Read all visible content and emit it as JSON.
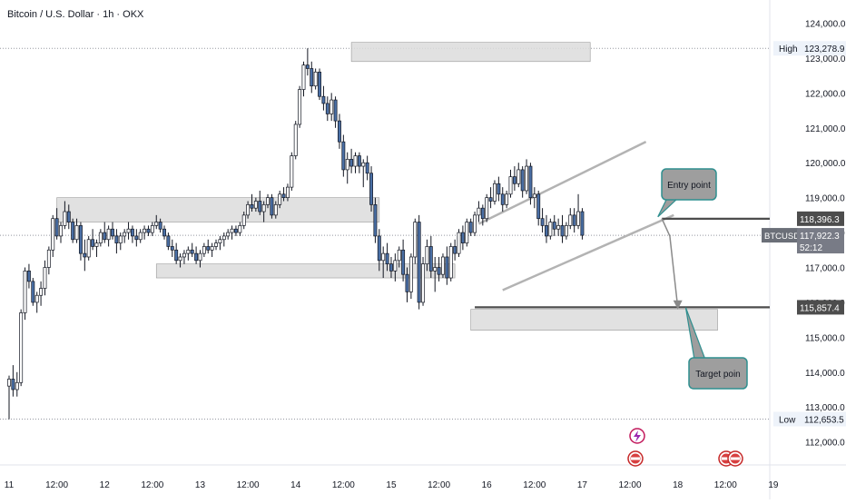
{
  "chart_data": {
    "type": "candlestick",
    "title": "Bitcoin / U.S. Dollar · 1h · OKX",
    "symbol": "BTCUSD",
    "y_ticks": [
      112000,
      113000,
      114000,
      115000,
      116000,
      117000,
      118000,
      119000,
      120000,
      121000,
      122000,
      123000,
      124000
    ],
    "y_tick_labels": [
      "112,000.0",
      "113,000.0",
      "114,000.0",
      "115,000.0",
      "116,000.0",
      "117,000.0",
      "118,000.0",
      "119,000.0",
      "120,000.0",
      "121,000.0",
      "122,000.0",
      "123,000.0",
      "124,000.0"
    ],
    "ylim": [
      111600,
      124300
    ],
    "x_ticks": [
      {
        "label": "11",
        "t": 0
      },
      {
        "label": "12:00",
        "t": 12
      },
      {
        "label": "12",
        "t": 24
      },
      {
        "label": "12:00",
        "t": 36
      },
      {
        "label": "13",
        "t": 48
      },
      {
        "label": "12:00",
        "t": 60
      },
      {
        "label": "14",
        "t": 72
      },
      {
        "label": "12:00",
        "t": 84
      },
      {
        "label": "15",
        "t": 96
      },
      {
        "label": "12:00",
        "t": 108
      },
      {
        "label": "16",
        "t": 120
      },
      {
        "label": "12:00",
        "t": 132
      },
      {
        "label": "17",
        "t": 144
      },
      {
        "label": "12:00",
        "t": 156
      },
      {
        "label": "18",
        "t": 168
      },
      {
        "label": "12:00",
        "t": 180
      },
      {
        "label": "19",
        "t": 192
      }
    ],
    "candles": [
      [
        113600,
        113900,
        112650,
        113800
      ],
      [
        113800,
        114200,
        113300,
        113500
      ],
      [
        113500,
        114000,
        113300,
        113700
      ],
      [
        113700,
        115800,
        113600,
        115700
      ],
      [
        115700,
        117000,
        115500,
        116900
      ],
      [
        116900,
        117100,
        116400,
        116600
      ],
      [
        116600,
        116700,
        115900,
        116000
      ],
      [
        116000,
        116300,
        115700,
        116200
      ],
      [
        116200,
        116600,
        115900,
        116400
      ],
      [
        116400,
        117200,
        116200,
        117000
      ],
      [
        117000,
        117600,
        116800,
        117500
      ],
      [
        117500,
        118500,
        117300,
        118400
      ],
      [
        118400,
        118700,
        117800,
        117900
      ],
      [
        117900,
        118300,
        117700,
        118200
      ],
      [
        118200,
        118900,
        118100,
        118600
      ],
      [
        118600,
        118800,
        118100,
        118300
      ],
      [
        118300,
        118400,
        117700,
        117800
      ],
      [
        117800,
        118400,
        117700,
        118200
      ],
      [
        118200,
        118300,
        117200,
        117400
      ],
      [
        117400,
        117800,
        116900,
        117300
      ],
      [
        117300,
        117900,
        117200,
        117800
      ],
      [
        117800,
        118100,
        117500,
        117600
      ],
      [
        117600,
        117800,
        117300,
        117700
      ],
      [
        117700,
        118100,
        117600,
        118000
      ],
      [
        118000,
        118300,
        117700,
        117800
      ],
      [
        117800,
        118200,
        117600,
        118100
      ],
      [
        118100,
        118300,
        117800,
        117900
      ],
      [
        117900,
        118100,
        117400,
        117700
      ],
      [
        117700,
        118000,
        117500,
        117900
      ],
      [
        117900,
        118100,
        117700,
        118000
      ],
      [
        118000,
        118300,
        117800,
        118100
      ],
      [
        118100,
        118200,
        117700,
        117900
      ],
      [
        117900,
        118100,
        117600,
        117800
      ],
      [
        117800,
        118100,
        117700,
        118000
      ],
      [
        118000,
        118200,
        117800,
        118100
      ],
      [
        118100,
        118200,
        117900,
        118000
      ],
      [
        118000,
        118300,
        117900,
        118200
      ],
      [
        118200,
        118500,
        118100,
        118300
      ],
      [
        118300,
        118400,
        118000,
        118100
      ],
      [
        118100,
        118200,
        117800,
        117900
      ],
      [
        117900,
        118000,
        117500,
        117600
      ],
      [
        117600,
        117800,
        117300,
        117500
      ],
      [
        117500,
        117700,
        117100,
        117200
      ],
      [
        117200,
        117400,
        117000,
        117300
      ],
      [
        117300,
        117500,
        117100,
        117400
      ],
      [
        117400,
        117600,
        117200,
        117500
      ],
      [
        117500,
        117700,
        117300,
        117400
      ],
      [
        117400,
        117600,
        117100,
        117200
      ],
      [
        117200,
        117500,
        117000,
        117400
      ],
      [
        117400,
        117700,
        117300,
        117600
      ],
      [
        117600,
        117800,
        117400,
        117500
      ],
      [
        117500,
        117700,
        117300,
        117600
      ],
      [
        117600,
        117800,
        117500,
        117700
      ],
      [
        117700,
        117900,
        117500,
        117800
      ],
      [
        117800,
        118000,
        117600,
        117900
      ],
      [
        117900,
        118100,
        117800,
        118000
      ],
      [
        118000,
        118200,
        117800,
        118100
      ],
      [
        118100,
        118200,
        117900,
        118000
      ],
      [
        118000,
        118300,
        117900,
        118200
      ],
      [
        118200,
        118600,
        118100,
        118500
      ],
      [
        118500,
        118900,
        118400,
        118800
      ],
      [
        118800,
        119100,
        118600,
        118700
      ],
      [
        118700,
        119000,
        118600,
        118900
      ],
      [
        118900,
        119200,
        118500,
        118600
      ],
      [
        118600,
        118900,
        118300,
        118800
      ],
      [
        118800,
        119100,
        118700,
        119000
      ],
      [
        119000,
        119100,
        118400,
        118500
      ],
      [
        118500,
        118900,
        118400,
        118800
      ],
      [
        118800,
        119200,
        118700,
        119100
      ],
      [
        119100,
        119300,
        118900,
        119000
      ],
      [
        119000,
        119400,
        118900,
        119300
      ],
      [
        119300,
        120300,
        119200,
        120200
      ],
      [
        120200,
        121200,
        120100,
        121100
      ],
      [
        121100,
        122200,
        121000,
        122100
      ],
      [
        122100,
        122900,
        121900,
        122800
      ],
      [
        122800,
        123279,
        122500,
        122700
      ],
      [
        122700,
        122900,
        122000,
        122200
      ],
      [
        122200,
        122700,
        122100,
        122600
      ],
      [
        122600,
        122700,
        121800,
        121900
      ],
      [
        121900,
        122200,
        121500,
        121700
      ],
      [
        121700,
        121900,
        121200,
        121400
      ],
      [
        121400,
        122000,
        121200,
        121800
      ],
      [
        121800,
        121900,
        121000,
        121200
      ],
      [
        121200,
        121400,
        120400,
        120600
      ],
      [
        120600,
        120800,
        119600,
        119800
      ],
      [
        119800,
        120300,
        119400,
        120100
      ],
      [
        120100,
        120400,
        119700,
        119900
      ],
      [
        119900,
        120300,
        119700,
        120200
      ],
      [
        120200,
        120300,
        119700,
        119900
      ],
      [
        119900,
        120100,
        119300,
        120000
      ],
      [
        120000,
        120200,
        119500,
        119700
      ],
      [
        119700,
        119900,
        118600,
        118800
      ],
      [
        118800,
        119000,
        117700,
        117900
      ],
      [
        117900,
        118100,
        116900,
        117200
      ],
      [
        117200,
        117600,
        116700,
        117400
      ],
      [
        117400,
        117700,
        116900,
        117100
      ],
      [
        117100,
        117300,
        116700,
        116900
      ],
      [
        116900,
        117400,
        116600,
        117200
      ],
      [
        117200,
        117600,
        117000,
        117500
      ],
      [
        117500,
        117800,
        116600,
        116800
      ],
      [
        116800,
        117000,
        116000,
        116300
      ],
      [
        116300,
        117400,
        116100,
        117300
      ],
      [
        117300,
        118400,
        117100,
        118300
      ],
      [
        118300,
        118500,
        115800,
        116000
      ],
      [
        116000,
        117300,
        115900,
        117100
      ],
      [
        117100,
        117800,
        116900,
        117600
      ],
      [
        117600,
        117900,
        116700,
        116900
      ],
      [
        116900,
        117300,
        116300,
        117000
      ],
      [
        117000,
        117300,
        116600,
        116800
      ],
      [
        116800,
        117400,
        116700,
        117300
      ],
      [
        117300,
        117600,
        116500,
        116700
      ],
      [
        116700,
        117700,
        116600,
        117600
      ],
      [
        117600,
        117800,
        117200,
        117400
      ],
      [
        117400,
        118100,
        117300,
        118000
      ],
      [
        118000,
        118200,
        117500,
        117700
      ],
      [
        117700,
        118400,
        117600,
        118300
      ],
      [
        118300,
        118400,
        117900,
        118000
      ],
      [
        118000,
        118600,
        117900,
        118500
      ],
      [
        118500,
        118900,
        118300,
        118700
      ],
      [
        118700,
        118800,
        118200,
        118400
      ],
      [
        118400,
        119100,
        118300,
        119000
      ],
      [
        119000,
        119300,
        118700,
        118900
      ],
      [
        118900,
        119500,
        118800,
        119400
      ],
      [
        119400,
        119600,
        118900,
        119100
      ],
      [
        119100,
        119300,
        118600,
        118800
      ],
      [
        118800,
        119200,
        118700,
        119100
      ],
      [
        119100,
        119800,
        119000,
        119600
      ],
      [
        119600,
        119900,
        119200,
        119400
      ],
      [
        119400,
        120000,
        119300,
        119800
      ],
      [
        119800,
        119900,
        119000,
        119200
      ],
      [
        119200,
        120100,
        119100,
        119900
      ],
      [
        119900,
        120000,
        118800,
        119000
      ],
      [
        119000,
        119300,
        118700,
        119100
      ],
      [
        119100,
        119200,
        118200,
        118400
      ],
      [
        118400,
        118700,
        118000,
        118200
      ],
      [
        118200,
        118500,
        117700,
        117900
      ],
      [
        117900,
        118400,
        117800,
        118300
      ],
      [
        118300,
        118500,
        117900,
        118100
      ],
      [
        118100,
        118400,
        117900,
        118200
      ],
      [
        118200,
        118500,
        117700,
        117900
      ],
      [
        117900,
        118300,
        117800,
        118200
      ],
      [
        118200,
        118700,
        118100,
        118500
      ],
      [
        118500,
        118700,
        118000,
        118200
      ],
      [
        118200,
        119100,
        118100,
        118600
      ],
      [
        118600,
        118700,
        117800,
        117922
      ]
    ],
    "candle_t_start": 0,
    "zones": [
      {
        "t0": 86,
        "t1": 146,
        "y0": 122900,
        "y1": 123450
      },
      {
        "t0": 12,
        "t1": 93,
        "y0": 118300,
        "y1": 119000
      },
      {
        "t0": 37,
        "t1": 112,
        "y0": 116700,
        "y1": 117100
      },
      {
        "t0": 116,
        "t1": 178,
        "y0": 115200,
        "y1": 115800
      }
    ],
    "channel": {
      "upper": [
        {
          "t": 118,
          "y": 118250
        },
        {
          "t": 160,
          "y": 120600
        }
      ],
      "lower": [
        {
          "t": 124,
          "y": 116350
        },
        {
          "t": 167,
          "y": 118500
        }
      ]
    },
    "levels": [
      {
        "value": 118396.3,
        "label": "118,396.3",
        "t_start": 164
      },
      {
        "value": 115857.4,
        "label": "115,857.4",
        "t_start": 117
      }
    ],
    "arrow": [
      {
        "t": 164,
        "y": 118400
      },
      {
        "t": 166,
        "y": 117900
      },
      {
        "t": 168,
        "y": 115850
      }
    ],
    "annotations": [
      {
        "text": "Entry point",
        "point_t": 163,
        "point_y": 118450
      },
      {
        "text": "Target poin",
        "point_t": 170,
        "point_y": 115850
      }
    ],
    "high": {
      "label": "High",
      "value_label": "123,278.9",
      "value": 123278.9
    },
    "low": {
      "label": "Low",
      "value_label": "112,653.5",
      "value": 112653.5
    },
    "current": {
      "value": 117922.3,
      "price_label": "117,922.3",
      "countdown": "52:12"
    },
    "grid": false
  },
  "colors": {
    "bull": "#ffffff",
    "bear": "#4a6fa5",
    "wick": "#131722",
    "zone_fill": "#dcdcdc",
    "zone_stroke": "#9a9a9a",
    "channel": "#b3b3b3",
    "level_line": "#4d4d4d",
    "arrow": "#8a8a8a",
    "callout_fill": "#9e9e9e",
    "callout_stroke": "#2f8f8f",
    "axis_text": "#131722",
    "price_label_bg": "#4d4d4d"
  },
  "icons": [
    "lightning-event-icon",
    "us-flag-event-icon"
  ]
}
